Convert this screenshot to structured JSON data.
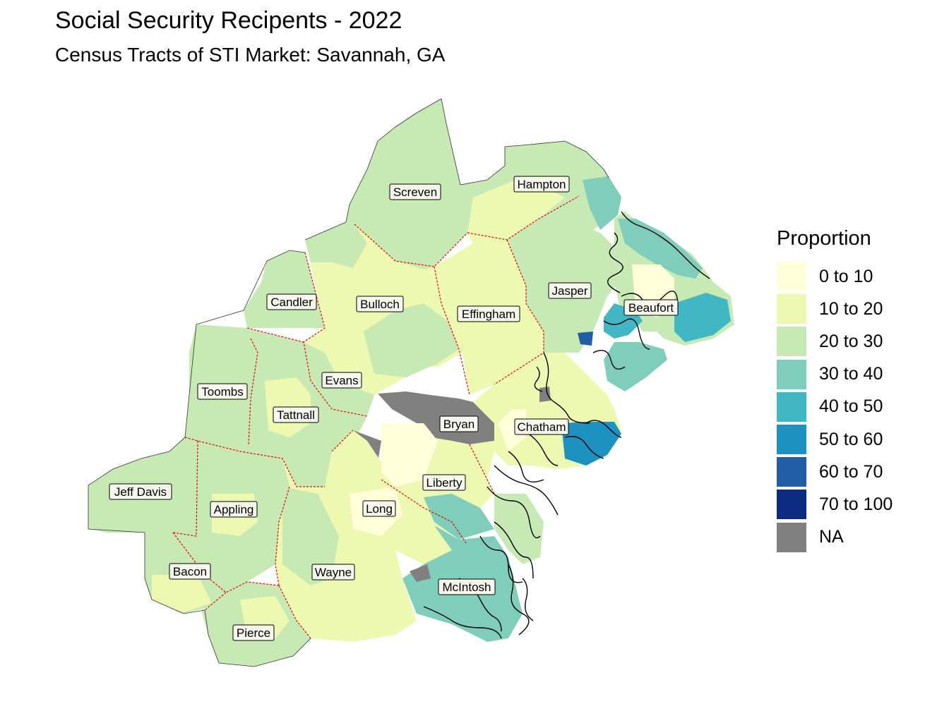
{
  "header": {
    "title": "Social Security Recipents - 2022",
    "subtitle": "Census Tracts of STI Market: Savannah, GA"
  },
  "legend": {
    "title": "Proportion",
    "items": [
      {
        "label": "0 to 10",
        "color": "#ffffd9"
      },
      {
        "label": "10 to 20",
        "color": "#edf8b1"
      },
      {
        "label": "20 to 30",
        "color": "#c7e9b4"
      },
      {
        "label": "30 to 40",
        "color": "#7fcdbb"
      },
      {
        "label": "40 to 50",
        "color": "#41b6c4"
      },
      {
        "label": "50 to 60",
        "color": "#1d91c0"
      },
      {
        "label": "60 to 70",
        "color": "#225ea8"
      },
      {
        "label": "70 to 100",
        "color": "#0c2c84"
      },
      {
        "label": "NA",
        "color": "#808080"
      }
    ]
  },
  "counties": [
    {
      "name": "Screven"
    },
    {
      "name": "Hampton"
    },
    {
      "name": "Candler"
    },
    {
      "name": "Bulloch"
    },
    {
      "name": "Effingham"
    },
    {
      "name": "Jasper"
    },
    {
      "name": "Beaufort"
    },
    {
      "name": "Toombs"
    },
    {
      "name": "Evans"
    },
    {
      "name": "Tattnall"
    },
    {
      "name": "Bryan"
    },
    {
      "name": "Chatham"
    },
    {
      "name": "Jeff Davis"
    },
    {
      "name": "Appling"
    },
    {
      "name": "Liberty"
    },
    {
      "name": "Long"
    },
    {
      "name": "Bacon"
    },
    {
      "name": "Wayne"
    },
    {
      "name": "McIntosh"
    },
    {
      "name": "Pierce"
    }
  ]
}
